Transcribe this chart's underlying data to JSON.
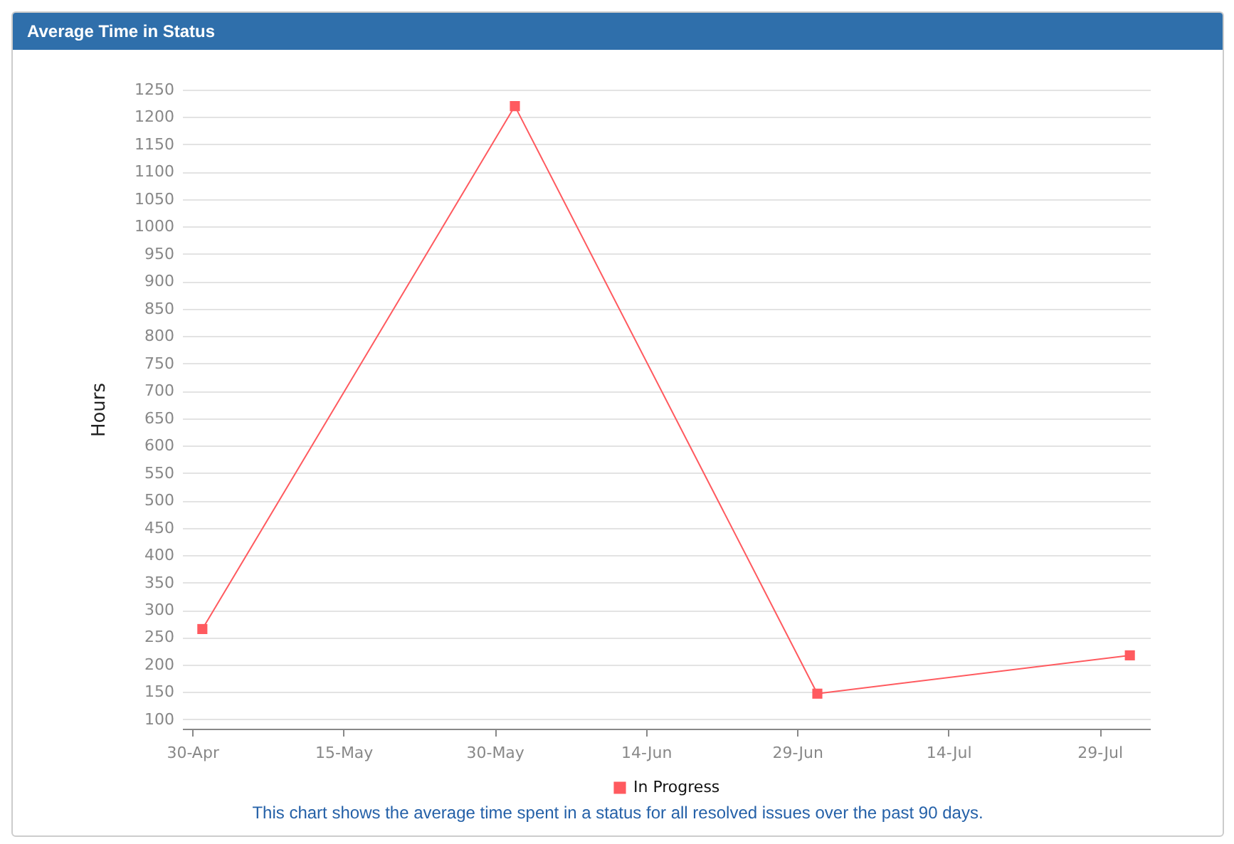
{
  "chart_data": {
    "type": "line",
    "title": "Average Time in Status",
    "ylabel": "Hours",
    "x": [
      "--05-01",
      "--06-01",
      "--07-01",
      "--08-01"
    ],
    "series": [
      {
        "name": "In Progress",
        "color": "#ff5a5f",
        "values": [
          265,
          1220,
          147,
          217
        ]
      }
    ],
    "xlim": [
      "--04-29",
      "--08-03"
    ],
    "xticks": [
      {
        "value": "--04-30",
        "label": "30-Apr"
      },
      {
        "value": "--05-15",
        "label": "15-May"
      },
      {
        "value": "--05-30",
        "label": "30-May"
      },
      {
        "value": "--06-14",
        "label": "14-Jun"
      },
      {
        "value": "--06-29",
        "label": "29-Jun"
      },
      {
        "value": "--07-14",
        "label": "14-Jul"
      },
      {
        "value": "--07-29",
        "label": "29-Jul"
      }
    ],
    "ylim": [
      83,
      1250
    ],
    "yticks": [
      100,
      150,
      200,
      250,
      300,
      350,
      400,
      450,
      500,
      550,
      600,
      650,
      700,
      750,
      800,
      850,
      900,
      950,
      1000,
      1050,
      1100,
      1150,
      1200,
      1250
    ],
    "grid": "y",
    "legend": "bottom",
    "marker": "square",
    "line_style": "solid",
    "annotations": [
      "This chart shows the average time spent in a status for all resolved issues over the past 90 days."
    ]
  }
}
